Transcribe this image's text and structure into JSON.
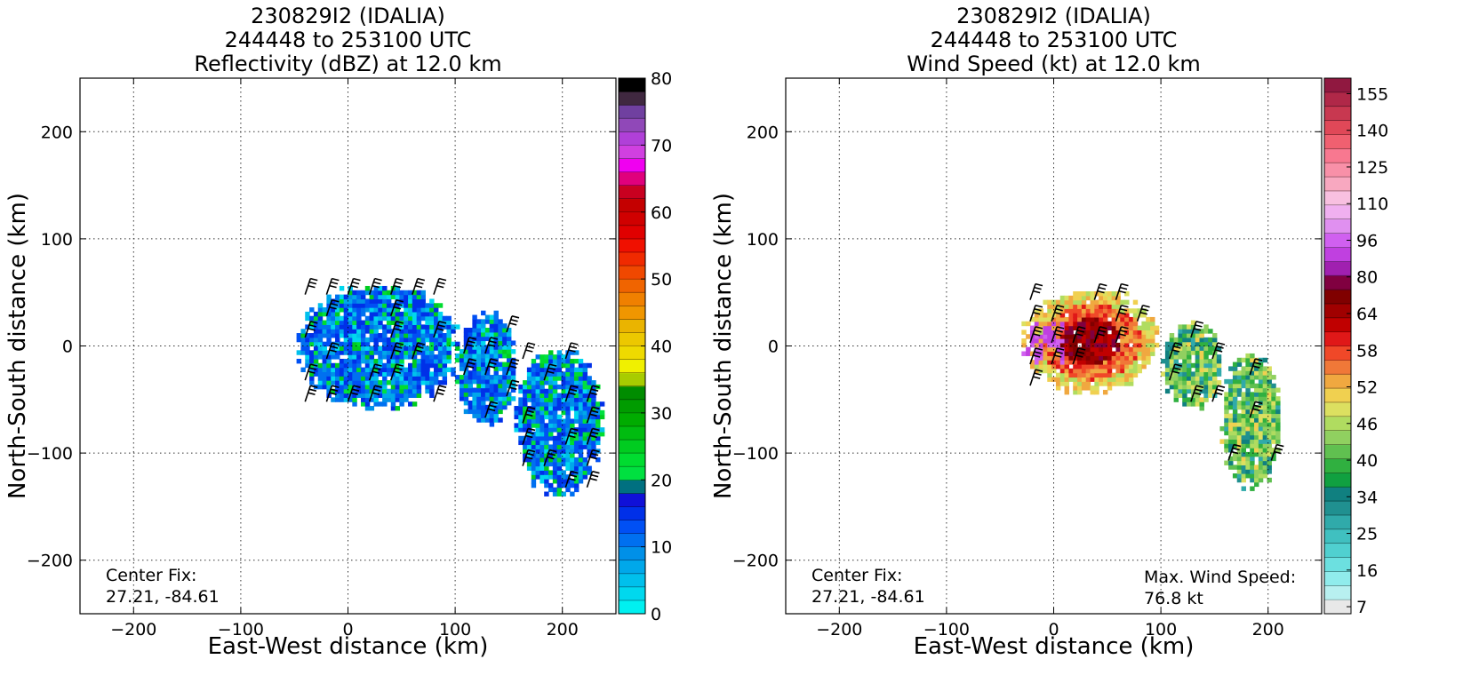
{
  "chart_data": [
    {
      "type": "heatmap",
      "title": [
        "230829I2 (IDALIA)",
        "244448 to 253100 UTC",
        "Reflectivity (dBZ) at 12.0 km"
      ],
      "xlabel": "East-West distance (km)",
      "ylabel": "North-South distance (km)",
      "xlim": [
        -250,
        250
      ],
      "ylim": [
        -250,
        250
      ],
      "xticks": [
        -200,
        -100,
        0,
        100,
        200
      ],
      "yticks": [
        -200,
        -100,
        0,
        100,
        200
      ],
      "grid": true,
      "annotations": [
        "Center Fix:",
        "27.21, -84.61"
      ],
      "colorbar": {
        "min": 0,
        "max": 80,
        "tick_labels": [
          "0",
          "10",
          "20",
          "30",
          "40",
          "50",
          "60",
          "70",
          "80"
        ],
        "colors": [
          "#00f0f0",
          "#00d8ee",
          "#00c0ec",
          "#00a8ea",
          "#0090e8",
          "#0070f0",
          "#0050f4",
          "#0030e8",
          "#1010d8",
          "#007080",
          "#00e040",
          "#00dc30",
          "#00cc20",
          "#00bc10",
          "#00ac00",
          "#009c00",
          "#008c00",
          "#a8cc00",
          "#f0f000",
          "#eeda00",
          "#ecc800",
          "#eab400",
          "#f09600",
          "#f08000",
          "#f06400",
          "#f04800",
          "#f02a00",
          "#f01000",
          "#e00000",
          "#d00000",
          "#c40000",
          "#c80020",
          "#e0007c",
          "#f000f0",
          "#d040e0",
          "#b040d8",
          "#9048b8",
          "#7040a0",
          "#402840",
          "#000000"
        ]
      },
      "center": [
        0,
        0
      ],
      "echo_regions": [
        {
          "name": "inner core",
          "x": [
            -48,
            100
          ],
          "y": [
            -60,
            55
          ]
        },
        {
          "name": "middle band",
          "x": [
            100,
            155
          ],
          "y": [
            -75,
            30
          ]
        },
        {
          "name": "outer band",
          "x": [
            155,
            235
          ],
          "y": [
            -140,
            -5
          ]
        }
      ]
    },
    {
      "type": "heatmap",
      "title": [
        "230829I2 (IDALIA)",
        "244448 to 253100 UTC",
        "Wind Speed (kt) at 12.0 km"
      ],
      "xlabel": "East-West distance (km)",
      "ylabel": "North-South distance (km)",
      "xlim": [
        -250,
        250
      ],
      "ylim": [
        -250,
        250
      ],
      "xticks": [
        -200,
        -100,
        0,
        100,
        200
      ],
      "yticks": [
        -200,
        -100,
        0,
        100,
        200
      ],
      "grid": true,
      "annotations": [
        "Center Fix:",
        "27.21, -84.61",
        "Max. Wind Speed:",
        "76.8 kt"
      ],
      "max_wind_kt": 76.8,
      "colorbar": {
        "tick_labels": [
          "7",
          "16",
          "25",
          "34",
          "40",
          "46",
          "52",
          "58",
          "64",
          "80",
          "96",
          "110",
          "125",
          "140",
          "155"
        ],
        "colors": [
          "#e8e8e8",
          "#b8f0f0",
          "#90ecec",
          "#6ce0e0",
          "#50d0d0",
          "#40c0c0",
          "#30aaaa",
          "#209090",
          "#108080",
          "#10a040",
          "#30b040",
          "#60c050",
          "#90d060",
          "#b0dc60",
          "#dce060",
          "#f0d050",
          "#f0a840",
          "#f07838",
          "#f04828",
          "#e01818",
          "#c00000",
          "#a00000",
          "#800000",
          "#800040",
          "#a020b0",
          "#c040e0",
          "#d060f0",
          "#e090f0",
          "#f0b0f0",
          "#f8c0e0",
          "#f8a8c0",
          "#f890a8",
          "#f87890",
          "#f06070",
          "#e04858",
          "#c83850",
          "#b02848",
          "#901840"
        ]
      },
      "center": [
        0,
        0
      ],
      "echo_regions": [
        {
          "name": "inner core",
          "x": [
            -30,
            95
          ],
          "y": [
            -45,
            50
          ]
        },
        {
          "name": "middle band",
          "x": [
            100,
            155
          ],
          "y": [
            -60,
            20
          ]
        },
        {
          "name": "outer band",
          "x": [
            155,
            210
          ],
          "y": [
            -135,
            -10
          ]
        }
      ]
    }
  ]
}
